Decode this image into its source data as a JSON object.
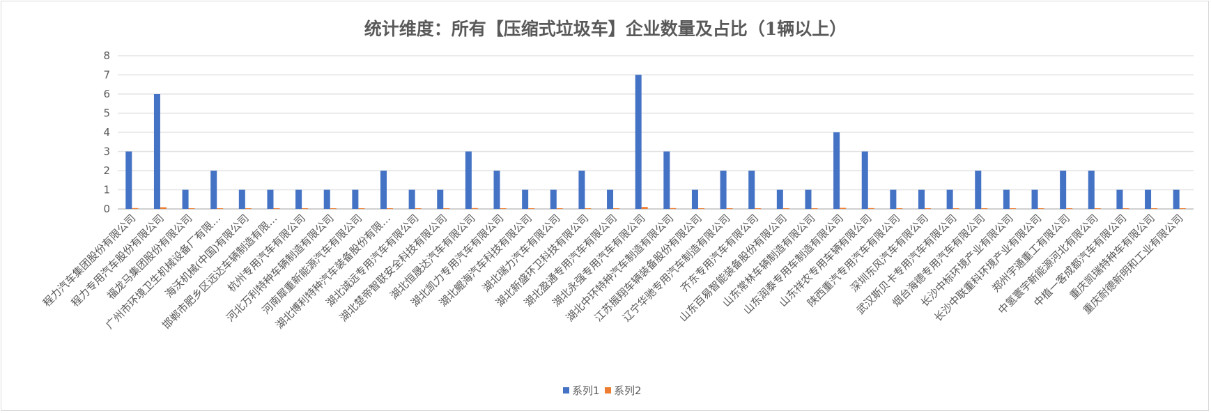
{
  "chart_data": {
    "type": "bar",
    "title": "统计维度：所有【压缩式垃圾车】企业数量及占比（1辆以上）",
    "xlabel": "",
    "ylabel": "",
    "ylim": [
      0,
      8
    ],
    "yticks": [
      0,
      1,
      2,
      3,
      4,
      5,
      6,
      7,
      8
    ],
    "grid": true,
    "legend_position": "bottom",
    "categories": [
      "程力汽车集团股份有限公司",
      "程力专用汽车股份有限公司",
      "福龙马集团股份有限公司",
      "广州市环境卫生机械设备厂有限…",
      "海沃机械(中国)有限公司",
      "邯郸市肥乡区远达车辆制造有限…",
      "杭州专用汽车有限公司",
      "河北万利特种车辆制造有限公司",
      "河南犀重新能源汽车有限公司",
      "湖北博利特种汽车装备股份有限…",
      "湖北诚远专用汽车有限公司",
      "湖北楚帝智联安全科技有限公司",
      "湖北恒晟达汽车有限公司",
      "湖北凯力专用汽车有限公司",
      "湖北鲲海汽车科技有限公司",
      "湖北瑞力汽车有限公司",
      "湖北新盛环卫科技有限公司",
      "湖北盈通专用汽车有限公司",
      "湖北永强专用汽车有限公司",
      "湖北中环特种汽车制造有限公司",
      "江苏振翔车辆装备股份有限公司",
      "辽宁华驰专用汽车制造有限公司",
      "齐东专用汽车有限公司",
      "山东百易智能装备股份有限公司",
      "山东常林车辆制造有限公司",
      "山东润泰专用车制造有限公司",
      "山东祥农专用车辆有限公司",
      "陕西重汽专用汽车有限公司",
      "深圳东风汽车有限公司",
      "武汉斯贝卡专用汽车有限公司",
      "烟台海德专用汽车有限公司",
      "长沙中标环境产业有限公司",
      "长沙中联重科环境产业有限公司",
      "郑州宇通重工有限公司",
      "中氢寰宇新能源河北有限公司",
      "中植一客成都汽车有限公司",
      "重庆凯瑞特种车有限公司",
      "重庆耐德新明和工业有限公司"
    ],
    "series": [
      {
        "name": "系列1",
        "color": "#4472c4",
        "values": [
          3,
          6,
          1,
          2,
          1,
          1,
          1,
          1,
          1,
          2,
          1,
          1,
          3,
          2,
          1,
          1,
          2,
          1,
          7,
          3,
          1,
          2,
          2,
          1,
          1,
          4,
          3,
          1,
          1,
          1,
          2,
          1,
          1,
          2,
          2,
          1,
          1,
          1
        ]
      },
      {
        "name": "系列2",
        "color": "#ed7d31",
        "values": [
          0.0435,
          0.087,
          0.0145,
          0.029,
          0.0145,
          0.0145,
          0.0145,
          0.0145,
          0.0145,
          0.029,
          0.0145,
          0.0145,
          0.0435,
          0.029,
          0.0145,
          0.0145,
          0.029,
          0.0145,
          0.1014,
          0.0435,
          0.0145,
          0.029,
          0.029,
          0.0145,
          0.0145,
          0.058,
          0.0435,
          0.0145,
          0.0145,
          0.0145,
          0.029,
          0.0145,
          0.0145,
          0.029,
          0.029,
          0.0145,
          0.0145,
          0.0145
        ]
      }
    ]
  }
}
